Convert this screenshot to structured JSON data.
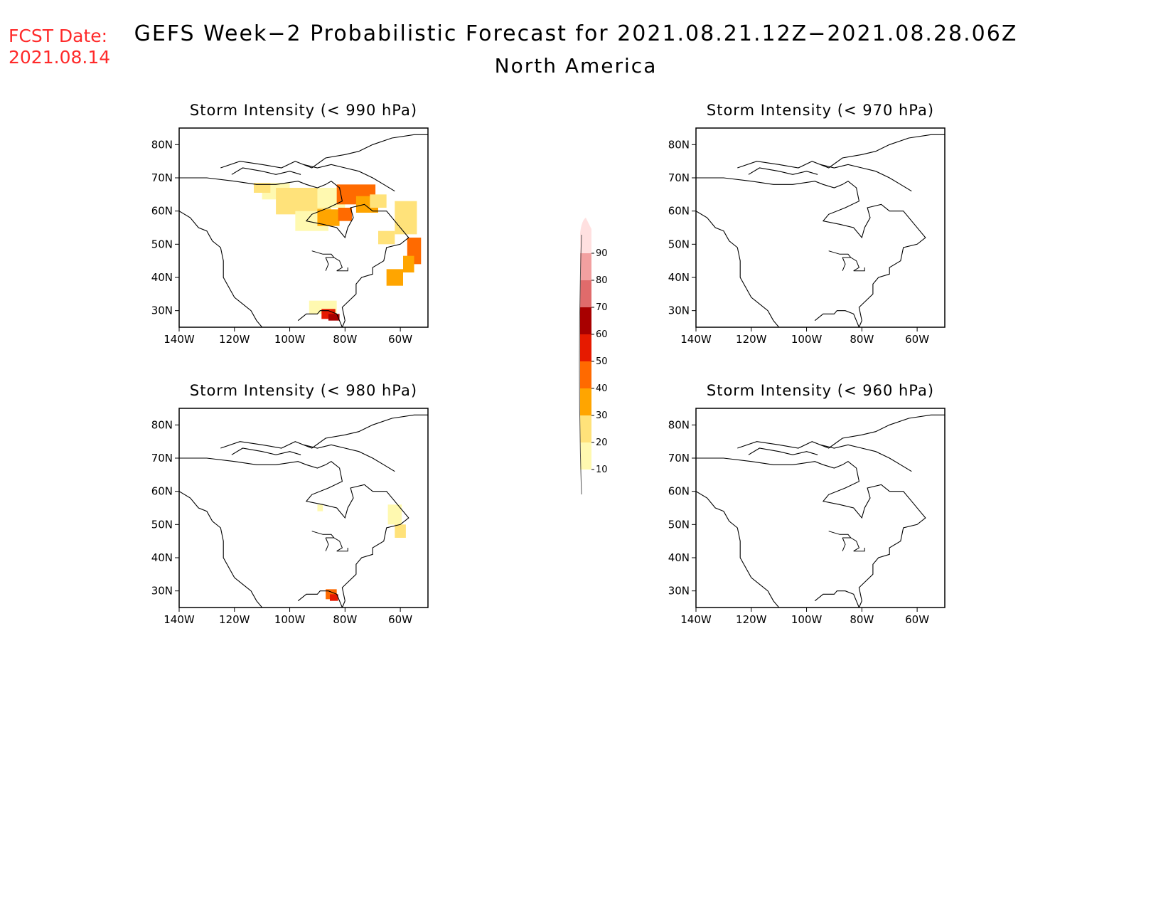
{
  "fcst": {
    "label": "FCST Date:",
    "date": "2021.08.14"
  },
  "title": {
    "line1": "GEFS Week−2 Probabilistic Forecast for 2021.08.21.12Z−2021.08.28.06Z",
    "line2": "North America"
  },
  "axes": {
    "lat_labels": [
      "80N",
      "70N",
      "60N",
      "50N",
      "40N",
      "30N"
    ],
    "lon_labels": [
      "140W",
      "120W",
      "100W",
      "80W",
      "60W"
    ]
  },
  "panels": [
    {
      "id": "p990",
      "title": "Storm Intensity (< 990 hPa)"
    },
    {
      "id": "p970",
      "title": "Storm Intensity (< 970 hPa)"
    },
    {
      "id": "p980",
      "title": "Storm Intensity (< 980 hPa)"
    },
    {
      "id": "p960",
      "title": "Storm Intensity (< 960 hPa)"
    }
  ],
  "colorbar": {
    "labels": [
      "10",
      "20",
      "30",
      "40",
      "50",
      "60",
      "70",
      "80",
      "90"
    ],
    "colors": [
      "#fff9b0",
      "#ffe27a",
      "#ffa500",
      "#ff6a00",
      "#e61a00",
      "#a80000",
      "#e06b6b",
      "#f2a0a0",
      "#ffe0e0"
    ]
  },
  "colors": {
    "accent_red": "#ff2a2a"
  }
}
